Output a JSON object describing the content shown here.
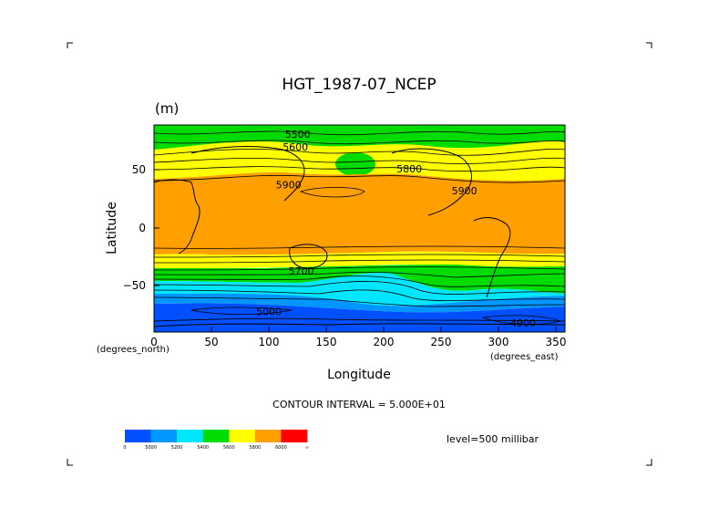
{
  "chart_data": {
    "type": "heatmap",
    "title": "HGT_1987-07_NCEP",
    "units": "(m)",
    "xlabel": "Longitude",
    "ylabel": "Latitude",
    "x_unit_label": "(degrees_east)",
    "y_unit_label": "(degrees_north)",
    "xlim": [
      0,
      357.5
    ],
    "ylim": [
      -90,
      90
    ],
    "x_ticks": [
      "0",
      "50",
      "100",
      "150",
      "200",
      "250",
      "300",
      "350"
    ],
    "y_ticks": [
      "50",
      "0",
      "−50"
    ],
    "contour_interval_text": "CONTOUR INTERVAL = 5.000E+01",
    "level_text": "level=500 millibar",
    "contour_labels": [
      {
        "text": "5500",
        "lon": 125,
        "lat": 82
      },
      {
        "text": "5600",
        "lon": 123,
        "lat": 71
      },
      {
        "text": "5800",
        "lon": 222,
        "lat": 52
      },
      {
        "text": "5900",
        "lon": 270,
        "lat": 33
      },
      {
        "text": "5900",
        "lon": 117,
        "lat": 38
      },
      {
        "text": "5700",
        "lon": 128,
        "lat": -37
      },
      {
        "text": "5000",
        "lon": 100,
        "lat": -72
      },
      {
        "text": "4900",
        "lon": 321,
        "lat": -82
      }
    ],
    "colorbar": {
      "colors": [
        "#0050ff",
        "#0096ff",
        "#00e6ff",
        "#00dc00",
        "#ffff00",
        "#ffa000",
        "#ff0000"
      ],
      "labels": [
        "0",
        "5000",
        "5200",
        "5400",
        "5600",
        "5800",
        "6000",
        "∞"
      ]
    },
    "bands_by_latitude": [
      {
        "lat_from": 90,
        "lat_to": 71,
        "color": "green"
      },
      {
        "lat_from": 71,
        "lat_to": 48,
        "color": "yellow"
      },
      {
        "lat_from": 48,
        "lat_to": -30,
        "color": "orange"
      },
      {
        "lat_from": -30,
        "lat_to": -41,
        "color": "yellow"
      },
      {
        "lat_from": -41,
        "lat_to": -50,
        "color": "green"
      },
      {
        "lat_from": -50,
        "lat_to": -60,
        "color": "cyan"
      },
      {
        "lat_from": -60,
        "lat_to": -70,
        "color": "light-blue"
      },
      {
        "lat_from": -70,
        "lat_to": -90,
        "color": "blue"
      }
    ]
  }
}
